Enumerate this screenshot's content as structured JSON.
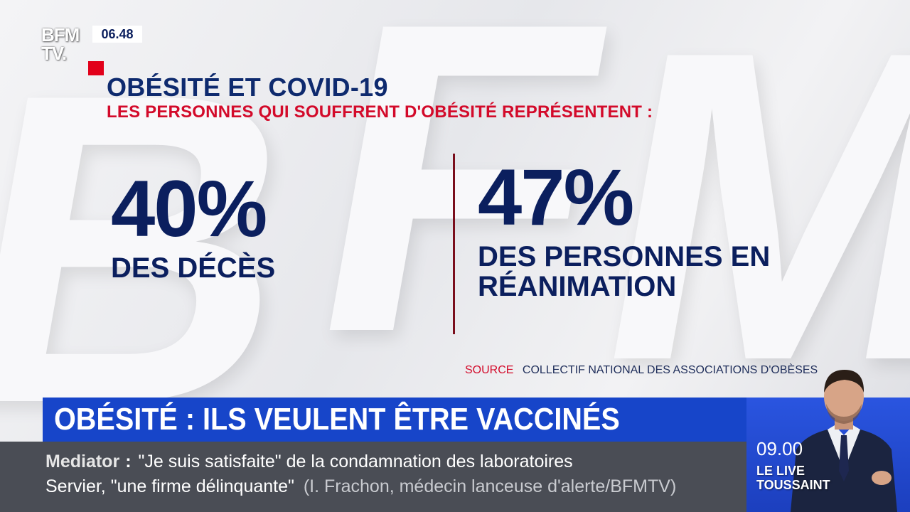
{
  "channel": {
    "logo_line1": "BFM",
    "logo_line2": "TV.",
    "clock": "06.48"
  },
  "graphic": {
    "title": "OBÉSITÉ ET COVID-19",
    "subtitle": "LES PERSONNES QUI SOUFFRENT D'OBÉSITÉ REPRÉSENTENT :",
    "stat_left": {
      "value": "40%",
      "label": "DES DÉCÈS"
    },
    "stat_right": {
      "value": "47%",
      "label": "DES PERSONNES EN RÉANIMATION"
    },
    "source_label": "SOURCE",
    "source_text": "COLLECTIF NATIONAL DES ASSOCIATIONS D'OBÈSES"
  },
  "headline": "OBÉSITÉ : ILS VEULENT ÊTRE VACCINÉS",
  "ticker": {
    "keyword": "Mediator",
    "line1": "\"Je suis satisfaite\" de la condamnation des laboratoires",
    "line2_main": "Servier, \"une firme délinquante\"",
    "line2_attribution": "(I. Frachon, médecin lanceuse d'alerte/BFMTV)"
  },
  "next_show": {
    "time": "09.00",
    "name_line1": "LE LIVE",
    "name_line2": "TOUSSAINT"
  },
  "colors": {
    "navy": "#0b1f5e",
    "red": "#d30a2a",
    "headline_blue": "#1745c9",
    "ticker_grey": "#4a4d55"
  }
}
